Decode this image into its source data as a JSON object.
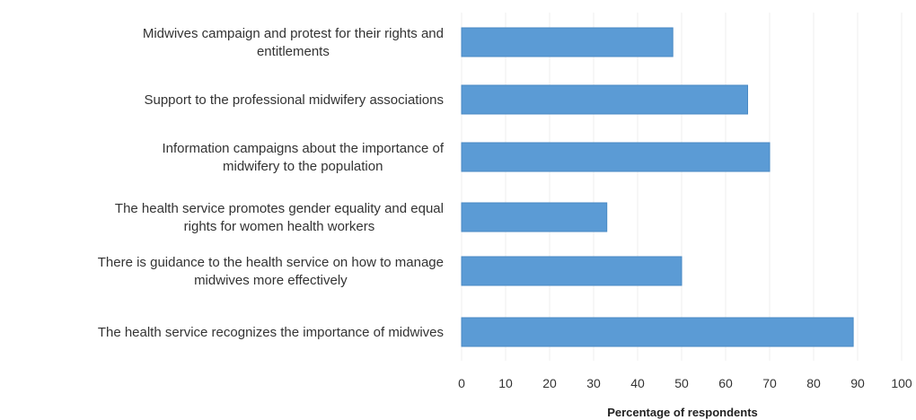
{
  "chart_data": {
    "type": "bar",
    "orientation": "horizontal",
    "categories": [
      [
        "Midwives campaign and protest for their rights and",
        "entitlements"
      ],
      [
        "Support to the professional midwifery associations"
      ],
      [
        "Information campaigns about the importance of",
        "midwifery to the population"
      ],
      [
        "The health service promotes gender equality and equal",
        "rights for women health workers"
      ],
      [
        "There is guidance to the health service on how to manage",
        "midwives more effectively"
      ],
      [
        "The health service recognizes the importance of midwives"
      ]
    ],
    "values": [
      48,
      65,
      70,
      33,
      50,
      89
    ],
    "xlabel": "Percentage of respondents",
    "ylabel": "",
    "title": "",
    "xlim": [
      0,
      100
    ],
    "xticks": [
      0,
      10,
      20,
      30,
      40,
      50,
      60,
      70,
      80,
      90,
      100
    ],
    "grid": "vertical",
    "bar_color": "#5b9bd5",
    "bar_edge_color": "#4a8ac4",
    "gridline_color": "#efefef",
    "legend": "none"
  }
}
